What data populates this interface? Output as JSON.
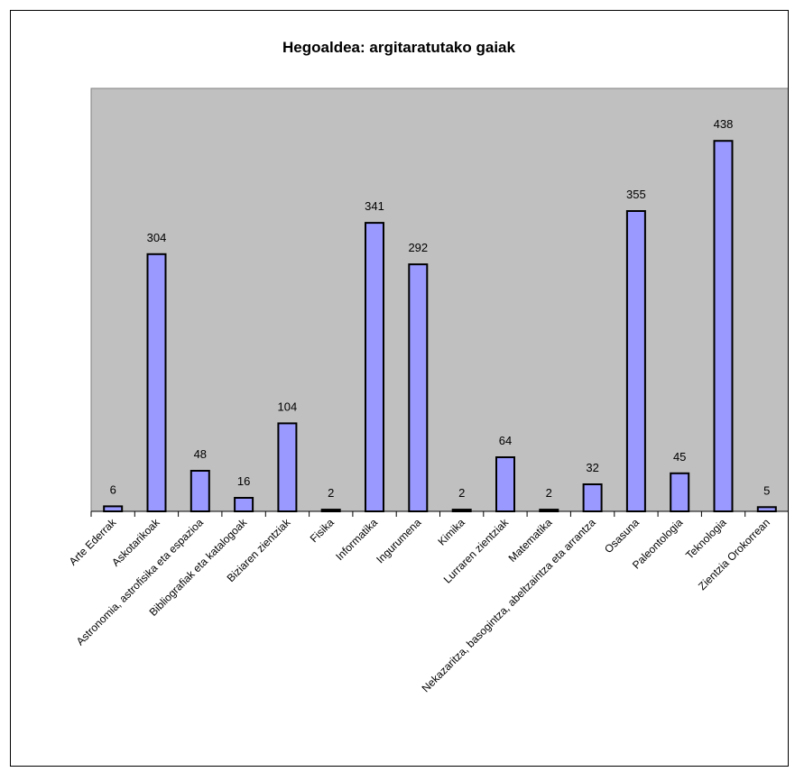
{
  "chart_data": {
    "type": "bar",
    "title": "Hegoaldea: argitaratutako gaiak",
    "xlabel": "",
    "ylabel": "",
    "categories": [
      "Arte Ederrak",
      "Askotarikoak",
      "Astronomia, astrofisika eta espazioa",
      "Bibliografiak eta katalogoak",
      "Biziaren zientziak",
      "Fisika",
      "Informatika",
      "Ingurumena",
      "Kimika",
      "Lurraren zientziak",
      "Matematika",
      "Nekazaritza, basogintza, abeltzaintza eta arrantza",
      "Osasuna",
      "Paleontologia",
      "Teknologia",
      "Zientzia Orokorrean"
    ],
    "values": [
      6,
      304,
      48,
      16,
      104,
      2,
      341,
      292,
      2,
      64,
      2,
      32,
      355,
      45,
      438,
      5
    ],
    "ylim": [
      0,
      500
    ],
    "grid": false,
    "legend": "none",
    "colors": {
      "bar_fill": "#9999ff",
      "bar_stroke": "#000000",
      "plot_background": "#c0c0c0",
      "plot_border": "#808080"
    }
  }
}
